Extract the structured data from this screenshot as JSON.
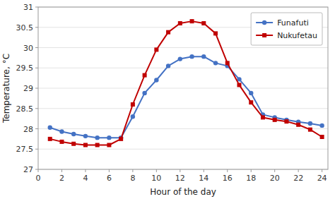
{
  "chart_data": {
    "type": "line",
    "x_label": "Hour of the day",
    "y_label": "Temperature, °C",
    "x": [
      1,
      2,
      3,
      4,
      5,
      6,
      7,
      8,
      9,
      10,
      11,
      12,
      13,
      14,
      15,
      16,
      17,
      18,
      19,
      20,
      21,
      22,
      23,
      24
    ],
    "series": [
      {
        "name": "Funafuti",
        "color": "#4472C4",
        "marker": "circle",
        "values": [
          28.03,
          27.93,
          27.87,
          27.82,
          27.78,
          27.78,
          27.78,
          28.3,
          28.88,
          29.2,
          29.55,
          29.72,
          29.78,
          29.78,
          29.62,
          29.55,
          29.22,
          28.88,
          28.35,
          28.28,
          28.22,
          28.17,
          28.13,
          28.08
        ]
      },
      {
        "name": "Nukufetau",
        "color": "#C00000",
        "marker": "square",
        "values": [
          27.75,
          27.68,
          27.63,
          27.6,
          27.6,
          27.6,
          27.75,
          28.6,
          29.32,
          29.95,
          30.38,
          30.6,
          30.65,
          30.6,
          30.35,
          29.62,
          29.08,
          28.65,
          28.28,
          28.22,
          28.18,
          28.1,
          27.98,
          27.8
        ]
      }
    ],
    "xlim": [
      0,
      24.5
    ],
    "ylim": [
      27.0,
      31.0
    ],
    "xticks": [
      0,
      2,
      4,
      6,
      8,
      10,
      12,
      14,
      16,
      18,
      20,
      22,
      24
    ],
    "yticks": [
      27,
      27.5,
      28,
      28.5,
      29,
      29.5,
      30,
      30.5,
      31
    ],
    "grid": true,
    "legend": "upper right"
  }
}
